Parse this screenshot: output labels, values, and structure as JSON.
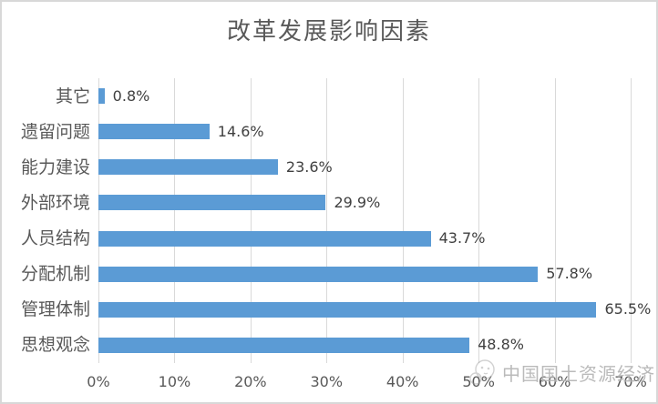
{
  "title": "改革发展影响因素",
  "watermark": {
    "text": "中国国土资源经济",
    "icon": "mascot-logo-icon"
  },
  "colors": {
    "bar": "#5b9bd5",
    "gridline": "#d9d9d9",
    "title_text": "#595959",
    "category_text": "#595959",
    "value_text": "#404040",
    "axis_text": "#595959",
    "frame_border": "#d8d8d8",
    "watermark_text": "#828282"
  },
  "chart_data": {
    "type": "bar",
    "orientation": "horizontal",
    "title": "改革发展影响因素",
    "categories": [
      "其它",
      "遗留问题",
      "能力建设",
      "外部环境",
      "人员结构",
      "分配机制",
      "管理体制",
      "思想观念"
    ],
    "values": [
      0.8,
      14.6,
      23.6,
      29.9,
      43.7,
      57.8,
      65.5,
      48.8
    ],
    "value_labels": [
      "0.8%",
      "14.6%",
      "23.6%",
      "29.9%",
      "43.7%",
      "57.8%",
      "65.5%",
      "48.8%"
    ],
    "x_ticks": [
      "0%",
      "10%",
      "20%",
      "30%",
      "40%",
      "50%",
      "60%",
      "70%"
    ],
    "xlim": [
      0,
      70
    ],
    "xlabel": "",
    "ylabel": "",
    "grid": true,
    "legend": false
  }
}
